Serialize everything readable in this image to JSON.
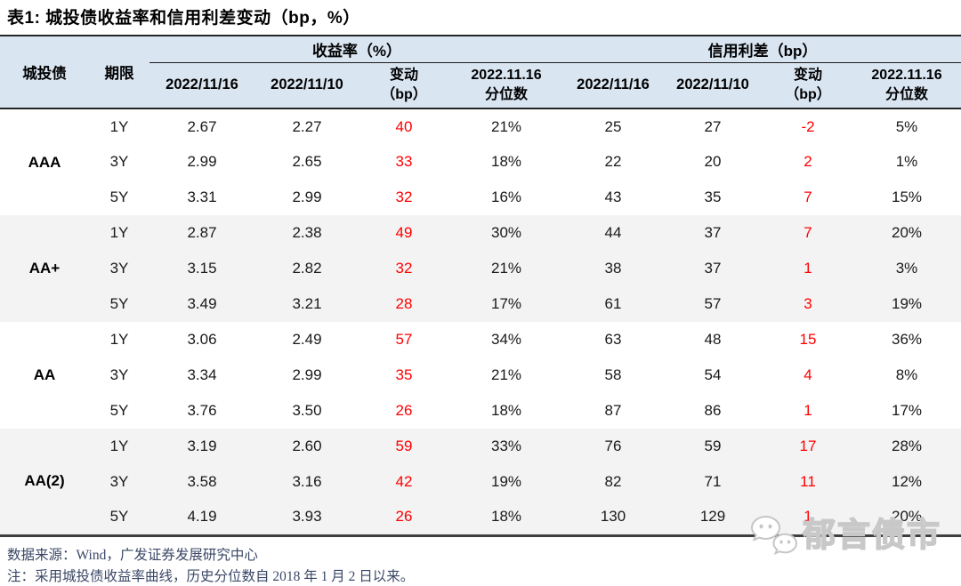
{
  "title": "表1:  城投债收益率和信用利差变动（bp，%）",
  "table": {
    "headers": {
      "bond": "城投债",
      "term": "期限",
      "group_yield": "收益率（%）",
      "group_spread": "信用利差（bp）",
      "yield_date1": "2022/11/16",
      "yield_date2": "2022/11/10",
      "yield_change_line1": "变动",
      "yield_change_line2": "（bp）",
      "yield_pct_line1": "2022.11.16",
      "yield_pct_line2": "分位数",
      "spread_date1": "2022/11/16",
      "spread_date2": "2022/11/10",
      "spread_change_line1": "变动",
      "spread_change_line2": "（bp）",
      "spread_pct_line1": "2022.11.16",
      "spread_pct_line2": "分位数"
    },
    "groups": [
      {
        "rating": "AAA",
        "rows": [
          {
            "term": "1Y",
            "yield_1116": "2.67",
            "yield_1110": "2.27",
            "yield_chg": "40",
            "yield_pct": "21%",
            "spread_1116": "25",
            "spread_1110": "27",
            "spread_chg": "-2",
            "spread_pct": "5%"
          },
          {
            "term": "3Y",
            "yield_1116": "2.99",
            "yield_1110": "2.65",
            "yield_chg": "33",
            "yield_pct": "18%",
            "spread_1116": "22",
            "spread_1110": "20",
            "spread_chg": "2",
            "spread_pct": "1%"
          },
          {
            "term": "5Y",
            "yield_1116": "3.31",
            "yield_1110": "2.99",
            "yield_chg": "32",
            "yield_pct": "16%",
            "spread_1116": "43",
            "spread_1110": "35",
            "spread_chg": "7",
            "spread_pct": "15%"
          }
        ]
      },
      {
        "rating": "AA+",
        "rows": [
          {
            "term": "1Y",
            "yield_1116": "2.87",
            "yield_1110": "2.38",
            "yield_chg": "49",
            "yield_pct": "30%",
            "spread_1116": "44",
            "spread_1110": "37",
            "spread_chg": "7",
            "spread_pct": "20%"
          },
          {
            "term": "3Y",
            "yield_1116": "3.15",
            "yield_1110": "2.82",
            "yield_chg": "32",
            "yield_pct": "21%",
            "spread_1116": "38",
            "spread_1110": "37",
            "spread_chg": "1",
            "spread_pct": "3%"
          },
          {
            "term": "5Y",
            "yield_1116": "3.49",
            "yield_1110": "3.21",
            "yield_chg": "28",
            "yield_pct": "17%",
            "spread_1116": "61",
            "spread_1110": "57",
            "spread_chg": "3",
            "spread_pct": "19%"
          }
        ]
      },
      {
        "rating": "AA",
        "rows": [
          {
            "term": "1Y",
            "yield_1116": "3.06",
            "yield_1110": "2.49",
            "yield_chg": "57",
            "yield_pct": "34%",
            "spread_1116": "63",
            "spread_1110": "48",
            "spread_chg": "15",
            "spread_pct": "36%"
          },
          {
            "term": "3Y",
            "yield_1116": "3.34",
            "yield_1110": "2.99",
            "yield_chg": "35",
            "yield_pct": "21%",
            "spread_1116": "58",
            "spread_1110": "54",
            "spread_chg": "4",
            "spread_pct": "8%"
          },
          {
            "term": "5Y",
            "yield_1116": "3.76",
            "yield_1110": "3.50",
            "yield_chg": "26",
            "yield_pct": "18%",
            "spread_1116": "87",
            "spread_1110": "86",
            "spread_chg": "1",
            "spread_pct": "17%"
          }
        ]
      },
      {
        "rating": "AA(2)",
        "rows": [
          {
            "term": "1Y",
            "yield_1116": "3.19",
            "yield_1110": "2.60",
            "yield_chg": "59",
            "yield_pct": "33%",
            "spread_1116": "76",
            "spread_1110": "59",
            "spread_chg": "17",
            "spread_pct": "28%"
          },
          {
            "term": "3Y",
            "yield_1116": "3.58",
            "yield_1110": "3.16",
            "yield_chg": "42",
            "yield_pct": "19%",
            "spread_1116": "82",
            "spread_1110": "71",
            "spread_chg": "11",
            "spread_pct": "12%"
          },
          {
            "term": "5Y",
            "yield_1116": "4.19",
            "yield_1110": "3.93",
            "yield_chg": "26",
            "yield_pct": "18%",
            "spread_1116": "130",
            "spread_1110": "129",
            "spread_chg": "1",
            "spread_pct": "20%"
          }
        ]
      }
    ]
  },
  "footer": {
    "source": "数据来源：Wind，广发证券发展研究中心",
    "note": "注：采用城投债收益率曲线，历史分位数自 2018 年 1 月 2 日以来。"
  },
  "watermark": {
    "text": "郁言债市",
    "icon": "wechat-bubbles-icon"
  },
  "colors": {
    "header_bg": "#D9E5F1",
    "band_alt_bg": "#F3F3F3",
    "change_red": "#FF0000",
    "footer_text": "#3A4766",
    "border_dark": "#262626"
  },
  "chart_data": {
    "type": "table",
    "title": "表1: 城投债收益率和信用利差变动（bp，%）",
    "column_groups": [
      "收益率（%）",
      "信用利差（bp）"
    ],
    "columns": [
      "城投债",
      "期限",
      "收益率 2022/11/16",
      "收益率 2022/11/10",
      "收益率变动（bp）",
      "收益率 2022.11.16分位数",
      "信用利差 2022/11/16",
      "信用利差 2022/11/10",
      "信用利差变动（bp）",
      "信用利差 2022.11.16分位数"
    ],
    "rows": [
      [
        "AAA",
        "1Y",
        2.67,
        2.27,
        40,
        "21%",
        25,
        27,
        -2,
        "5%"
      ],
      [
        "AAA",
        "3Y",
        2.99,
        2.65,
        33,
        "18%",
        22,
        20,
        2,
        "1%"
      ],
      [
        "AAA",
        "5Y",
        3.31,
        2.99,
        32,
        "16%",
        43,
        35,
        7,
        "15%"
      ],
      [
        "AA+",
        "1Y",
        2.87,
        2.38,
        49,
        "30%",
        44,
        37,
        7,
        "20%"
      ],
      [
        "AA+",
        "3Y",
        3.15,
        2.82,
        32,
        "21%",
        38,
        37,
        1,
        "3%"
      ],
      [
        "AA+",
        "5Y",
        3.49,
        3.21,
        28,
        "17%",
        61,
        57,
        3,
        "19%"
      ],
      [
        "AA",
        "1Y",
        3.06,
        2.49,
        57,
        "34%",
        63,
        48,
        15,
        "36%"
      ],
      [
        "AA",
        "3Y",
        3.34,
        2.99,
        35,
        "21%",
        58,
        54,
        4,
        "8%"
      ],
      [
        "AA",
        "5Y",
        3.76,
        3.5,
        26,
        "18%",
        87,
        86,
        1,
        "17%"
      ],
      [
        "AA(2)",
        "1Y",
        3.19,
        2.6,
        59,
        "33%",
        76,
        59,
        17,
        "28%"
      ],
      [
        "AA(2)",
        "3Y",
        3.58,
        3.16,
        42,
        "19%",
        82,
        71,
        11,
        "12%"
      ],
      [
        "AA(2)",
        "5Y",
        4.19,
        3.93,
        26,
        "18%",
        130,
        129,
        1,
        "20%"
      ]
    ]
  }
}
